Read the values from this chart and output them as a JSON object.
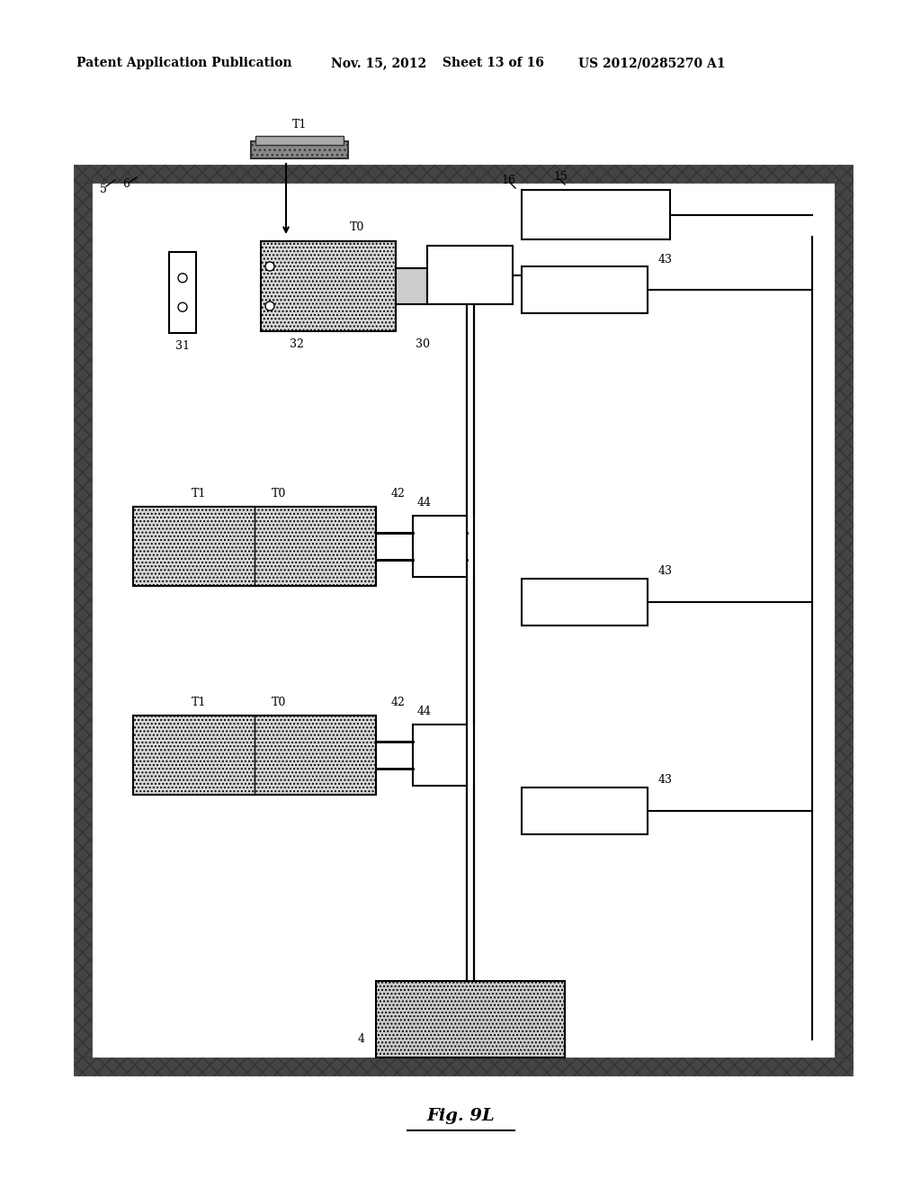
{
  "fig_width": 10.24,
  "fig_height": 13.2,
  "bg_color": "#ffffff",
  "header_text": "Patent Application Publication",
  "header_date": "Nov. 15, 2012",
  "header_sheet": "Sheet 13 of 16",
  "header_patent": "US 2012/0285270 A1",
  "fig_label": "Fig. 9L",
  "border_fill": "#555555",
  "sensor_fill": "#d0d0d0",
  "t1_top_fill": "#888888"
}
